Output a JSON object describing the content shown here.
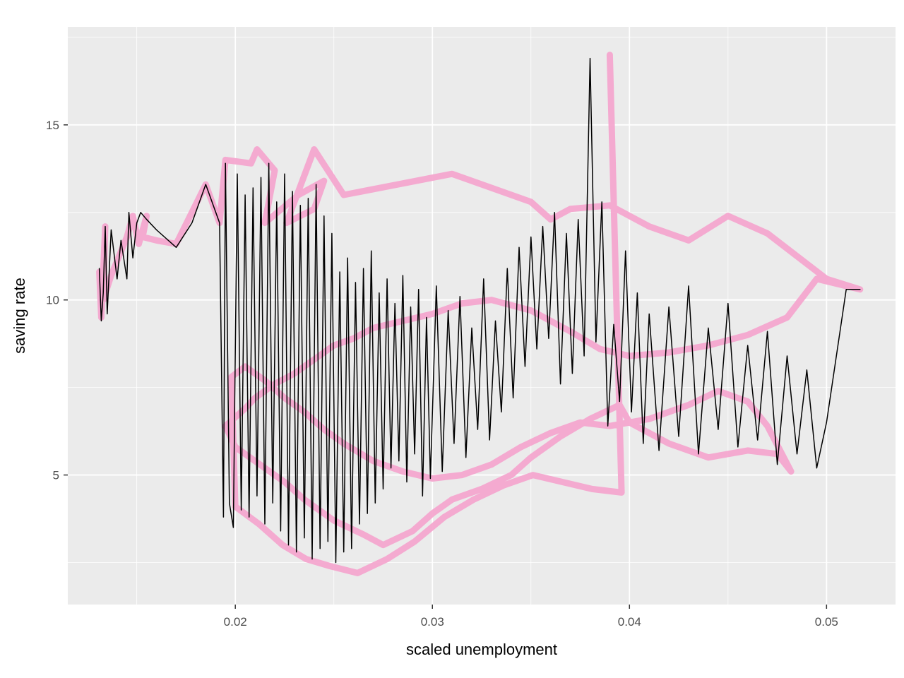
{
  "chart_data": {
    "type": "line",
    "title": "",
    "xlabel": "scaled unemployment",
    "ylabel": "saving rate",
    "xlim": [
      0.0115,
      0.0535
    ],
    "ylim": [
      1.3,
      17.8
    ],
    "x_ticks": [
      0.02,
      0.03,
      0.04,
      0.05
    ],
    "x_tick_labels": [
      "0.02",
      "0.03",
      "0.04",
      "0.05"
    ],
    "y_ticks": [
      5,
      10,
      15
    ],
    "y_tick_labels": [
      "5",
      "10",
      "15"
    ],
    "grid": true,
    "legend": "none",
    "colors": {
      "panel": "#ebebeb",
      "grid": "#ffffff",
      "thick_path": "#f4a6cf",
      "thin_path": "#000000",
      "tick_text": "#4d4d4d"
    },
    "series": [
      {
        "style": "thick pink path",
        "x": [
          0.0131,
          0.0132,
          0.0134,
          0.0133,
          0.0137,
          0.0145,
          0.0148,
          0.0151,
          0.0155,
          0.0153,
          0.016,
          0.017,
          0.0185,
          0.0192,
          0.0195,
          0.0208,
          0.0211,
          0.022,
          0.0215,
          0.0232,
          0.0245,
          0.024,
          0.0226,
          0.024,
          0.0255,
          0.031,
          0.035,
          0.036,
          0.037,
          0.039,
          0.041,
          0.043,
          0.045,
          0.047,
          0.05,
          0.0517,
          0.0495,
          0.048,
          0.046,
          0.044,
          0.042,
          0.04,
          0.0385,
          0.037,
          0.035,
          0.033,
          0.0315,
          0.03,
          0.0285,
          0.027,
          0.026,
          0.025,
          0.024,
          0.023,
          0.022,
          0.021,
          0.0205,
          0.0195,
          0.02,
          0.0215,
          0.0225,
          0.0235,
          0.025,
          0.0265,
          0.0275,
          0.029,
          0.03,
          0.031,
          0.0325,
          0.034,
          0.035,
          0.0365,
          0.038,
          0.0395,
          0.04,
          0.042,
          0.044,
          0.046,
          0.0475,
          0.0482,
          0.047,
          0.046,
          0.0445,
          0.043,
          0.041,
          0.039,
          0.0375,
          0.036,
          0.0345,
          0.033,
          0.0315,
          0.03,
          0.0285,
          0.027,
          0.0255,
          0.0245,
          0.0235,
          0.0225,
          0.0215,
          0.0205,
          0.0198,
          0.02,
          0.0212,
          0.0224,
          0.0236,
          0.0248,
          0.0262,
          0.0277,
          0.0291,
          0.0306,
          0.0321,
          0.0336,
          0.0351,
          0.0366,
          0.0381,
          0.0396,
          0.039
        ],
        "y": [
          10.8,
          9.5,
          12.1,
          10.0,
          10.7,
          11.8,
          12.4,
          11.6,
          12.4,
          11.8,
          11.7,
          11.6,
          13.3,
          12.2,
          14.0,
          13.9,
          14.3,
          13.7,
          12.2,
          13.0,
          13.4,
          12.6,
          12.2,
          14.3,
          13.0,
          13.6,
          12.8,
          12.3,
          12.6,
          12.7,
          12.1,
          11.7,
          12.4,
          11.9,
          10.6,
          10.3,
          10.6,
          9.5,
          9.0,
          8.7,
          8.5,
          8.4,
          8.6,
          9.1,
          9.7,
          10.0,
          9.9,
          9.6,
          9.4,
          9.2,
          8.9,
          8.7,
          8.3,
          7.9,
          7.6,
          7.2,
          6.9,
          6.4,
          5.8,
          5.2,
          4.8,
          4.3,
          3.7,
          3.3,
          3.0,
          3.4,
          3.9,
          4.3,
          4.6,
          5.0,
          5.5,
          6.1,
          6.6,
          7.0,
          6.5,
          5.9,
          5.5,
          5.7,
          5.6,
          5.1,
          6.4,
          7.1,
          7.4,
          7.0,
          6.6,
          6.4,
          6.5,
          6.2,
          5.8,
          5.3,
          5.0,
          4.9,
          5.1,
          5.4,
          5.9,
          6.3,
          6.8,
          7.2,
          7.7,
          8.1,
          7.8,
          4.1,
          3.6,
          3.0,
          2.6,
          2.4,
          2.2,
          2.6,
          3.1,
          3.8,
          4.3,
          4.7,
          5.0,
          4.8,
          4.6,
          4.5,
          17.0
        ]
      },
      {
        "style": "thin black path",
        "x": [
          0.0131,
          0.0132,
          0.0133,
          0.0134,
          0.0135,
          0.0137,
          0.014,
          0.0142,
          0.0145,
          0.0146,
          0.0148,
          0.015,
          0.0152,
          0.0155,
          0.016,
          0.017,
          0.0178,
          0.0185,
          0.0192,
          0.0194,
          0.0195,
          0.0197,
          0.0199,
          0.0201,
          0.0203,
          0.0205,
          0.0207,
          0.0209,
          0.0211,
          0.0213,
          0.0215,
          0.0217,
          0.0219,
          0.0221,
          0.0223,
          0.0225,
          0.0227,
          0.0229,
          0.0231,
          0.0233,
          0.0235,
          0.0237,
          0.0239,
          0.0241,
          0.0243,
          0.0245,
          0.0247,
          0.0249,
          0.0251,
          0.0253,
          0.0255,
          0.0257,
          0.0259,
          0.0261,
          0.0263,
          0.0265,
          0.0267,
          0.0269,
          0.0271,
          0.0273,
          0.0275,
          0.0277,
          0.0279,
          0.0281,
          0.0283,
          0.0285,
          0.0287,
          0.0289,
          0.0291,
          0.0293,
          0.0295,
          0.0297,
          0.0299,
          0.0302,
          0.0305,
          0.0308,
          0.0311,
          0.0314,
          0.0317,
          0.032,
          0.0323,
          0.0326,
          0.0329,
          0.0332,
          0.0335,
          0.0338,
          0.0341,
          0.0344,
          0.0347,
          0.035,
          0.0353,
          0.0356,
          0.0359,
          0.0362,
          0.0365,
          0.0368,
          0.0371,
          0.0374,
          0.0377,
          0.038,
          0.0383,
          0.0386,
          0.0389,
          0.0392,
          0.0395,
          0.0398,
          0.0401,
          0.0404,
          0.0407,
          0.041,
          0.0415,
          0.042,
          0.0425,
          0.043,
          0.0435,
          0.044,
          0.0445,
          0.045,
          0.0455,
          0.046,
          0.0465,
          0.047,
          0.0475,
          0.048,
          0.0485,
          0.049,
          0.0495,
          0.05,
          0.051,
          0.0517
        ],
        "y": [
          10.9,
          9.4,
          10.2,
          12.1,
          9.6,
          12.0,
          10.6,
          11.7,
          10.6,
          12.5,
          11.2,
          12.2,
          12.5,
          12.3,
          12.0,
          11.5,
          12.2,
          13.3,
          12.2,
          3.8,
          13.9,
          4.2,
          3.5,
          13.6,
          4.0,
          13.0,
          3.8,
          13.2,
          4.4,
          13.5,
          3.6,
          13.9,
          4.2,
          12.8,
          3.4,
          13.6,
          3.0,
          13.1,
          2.8,
          12.7,
          3.2,
          12.9,
          2.6,
          13.3,
          2.9,
          12.4,
          3.1,
          11.9,
          2.5,
          10.8,
          2.8,
          11.2,
          2.9,
          10.5,
          3.6,
          10.9,
          3.9,
          11.4,
          4.2,
          10.2,
          4.6,
          10.6,
          5.2,
          9.9,
          5.4,
          10.7,
          4.8,
          9.8,
          5.6,
          10.3,
          4.4,
          9.5,
          4.9,
          10.4,
          5.1,
          9.7,
          5.9,
          10.1,
          5.5,
          9.2,
          6.3,
          10.6,
          6.0,
          9.4,
          6.8,
          10.9,
          7.2,
          11.5,
          8.1,
          11.8,
          8.6,
          12.1,
          8.9,
          12.5,
          7.6,
          11.9,
          7.9,
          12.3,
          8.4,
          16.9,
          8.8,
          12.8,
          6.4,
          9.3,
          7.1,
          11.4,
          6.8,
          10.2,
          5.9,
          9.6,
          5.7,
          9.8,
          6.1,
          10.4,
          5.6,
          9.2,
          6.3,
          9.9,
          5.8,
          8.7,
          6.0,
          9.1,
          5.3,
          8.4,
          5.6,
          8.0,
          5.2,
          6.5,
          10.3,
          10.3
        ]
      }
    ]
  }
}
